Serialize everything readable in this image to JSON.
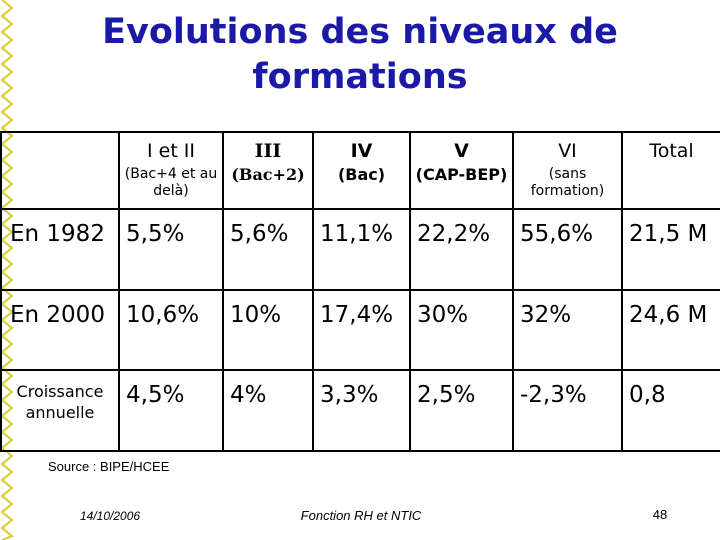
{
  "title": {
    "line1": "Evolutions des niveaux de",
    "line2": "formations"
  },
  "table": {
    "header": [
      {
        "roman": "",
        "sub": ""
      },
      {
        "roman": "I et II",
        "sub": "(Bac+4 et au delà)"
      },
      {
        "roman": "III",
        "sub": "(Bac+2)"
      },
      {
        "roman": "IV",
        "sub": "(Bac)"
      },
      {
        "roman": "V",
        "sub": "(CAP-BEP)"
      },
      {
        "roman": "VI",
        "sub": "(sans formation)"
      },
      {
        "roman": "Total",
        "sub": ""
      }
    ],
    "rows": [
      {
        "label": "En 1982",
        "values": [
          "5,5%",
          "5,6%",
          "11,1%",
          "22,2%",
          "55,6%",
          "21,5 M"
        ]
      },
      {
        "label": "En 2000",
        "values": [
          "10,6%",
          "10%",
          "17,4%",
          "30%",
          "32%",
          "24,6 M"
        ]
      },
      {
        "label": "Croissance annuelle",
        "values": [
          "4,5%",
          "4%",
          "3,3%",
          "2,5%",
          "-2,3%",
          "0,8"
        ]
      }
    ]
  },
  "source": "Source : BIPE/HCEE",
  "footer": {
    "date": "14/10/2006",
    "center": "Fonction RH et NTIC",
    "page": "48"
  },
  "colors": {
    "title": "#1a1aa6",
    "zigzag": "#d8cc2c"
  }
}
